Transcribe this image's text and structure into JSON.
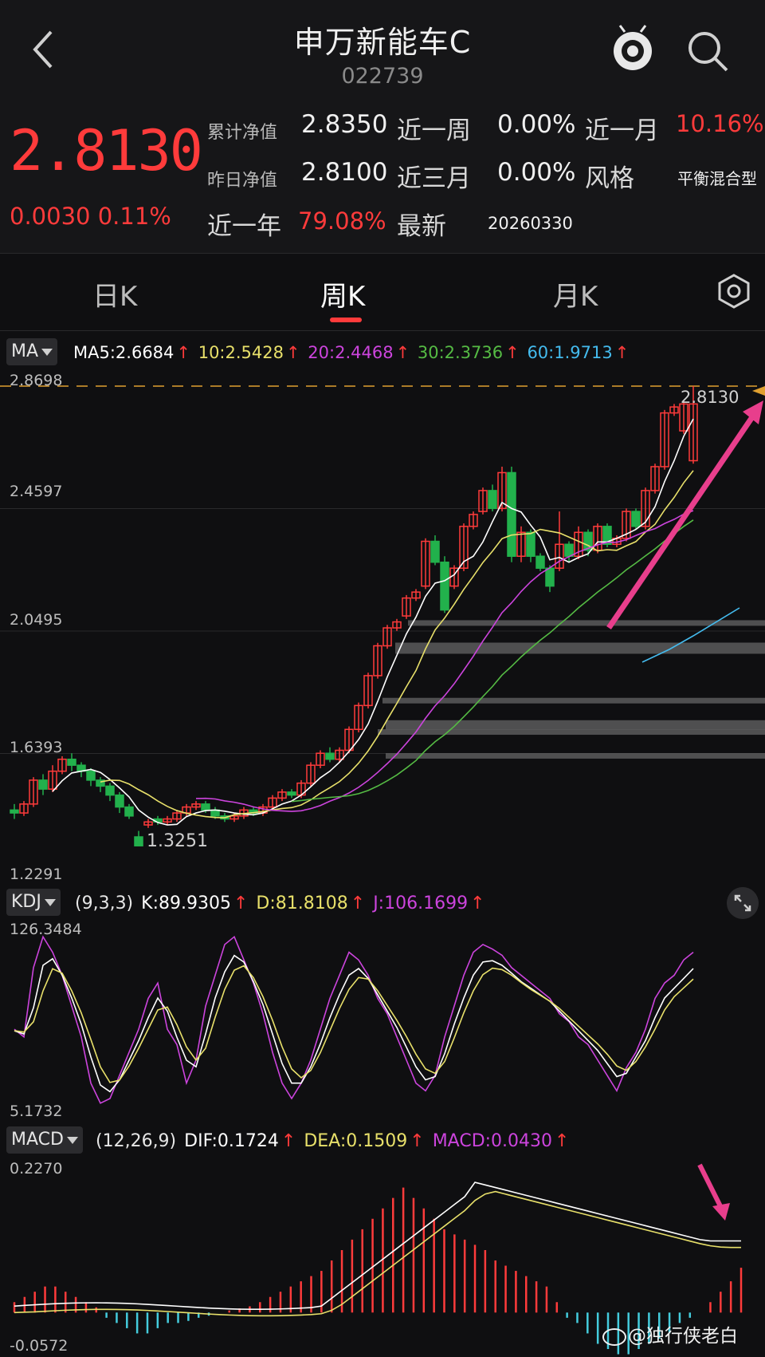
{
  "header": {
    "title": "申万新能车C",
    "code": "022739"
  },
  "quote": {
    "price": "2.8130",
    "change": "0.0030",
    "change_pct": "0.11%",
    "acc_nav_label": "累计净值",
    "acc_nav_value": "2.8350",
    "prev_nav_label": "昨日净值",
    "prev_nav_value": "2.8100",
    "week_label": "近一周",
    "week_value": "0.00%",
    "month_label": "近一月",
    "month_value": "10.16%",
    "three_month_label": "近三月",
    "three_month_value": "0.00%",
    "style_label": "风格",
    "style_value": "平衡混合型",
    "year_label": "近一年",
    "year_value": "79.08%",
    "latest_label": "最新",
    "latest_value": "20260330"
  },
  "tabs": [
    {
      "label": "日K"
    },
    {
      "label": "周K"
    },
    {
      "label": "月K"
    }
  ],
  "active_tab": "周K",
  "ma_panel": {
    "button": "MA",
    "ma5": "MA5:2.6684",
    "ma10": "10:2.5428",
    "ma20": "20:2.4468",
    "ma30": "30:2.3736",
    "ma60": "60:1.9713",
    "arrow": "↑",
    "price_labels": [
      "2.8698",
      "2.4597",
      "2.0495",
      "1.6393",
      "1.2291"
    ],
    "last_price_tag": "2.8130",
    "low_tag": "1.3251"
  },
  "kdj_panel": {
    "button": "KDJ",
    "params": "(9,3,3)",
    "k": "K:89.9305",
    "d": "D:81.8108",
    "j": "J:106.1699",
    "arrow": "↑",
    "max_label": "126.3484",
    "min_label": "5.1732"
  },
  "macd_panel": {
    "button": "MACD",
    "params": "(12,26,9)",
    "dif": "DIF:0.1724",
    "dea": "DEA:0.1509",
    "macd": "MACD:0.0430",
    "arrow": "↑",
    "max_label": "0.2270",
    "min_label": "-0.0572"
  },
  "colors": {
    "up": "#ff3b3b",
    "down": "#22b14c",
    "ma5": "#ffffff",
    "ma10": "#e8e06a",
    "ma20": "#cc44dd",
    "ma30": "#55bb44",
    "ma60": "#44bbee",
    "annotation": "#e83e8c",
    "reference": "#e0a030"
  },
  "watermark": "@独行侠老白"
}
